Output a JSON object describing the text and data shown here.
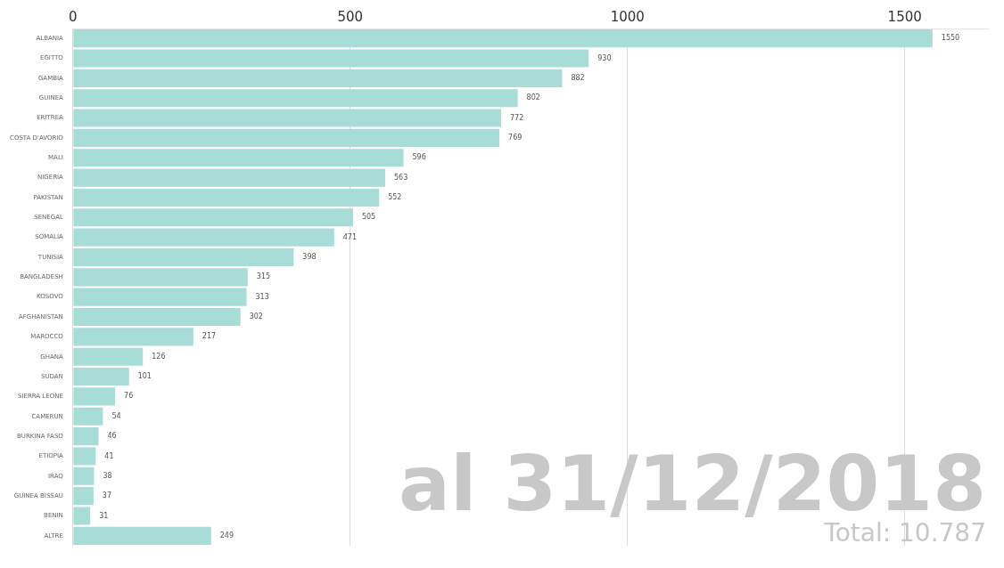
{
  "chart_data": {
    "type": "bar",
    "orientation": "horizontal",
    "categories": [
      "ALBANIA",
      "EGITTO",
      "GAMBIA",
      "GUINEA",
      "ERITREA",
      "COSTA D'AVORIO",
      "MALI",
      "NIGERIA",
      "PAKISTAN",
      "SENEGAL",
      "SOMALIA",
      "TUNISIA",
      "BANGLADESH",
      "KOSOVO",
      "AFGHANISTAN",
      "MAROCCO",
      "GHANA",
      "SUDAN",
      "SIERRA LEONE",
      "CAMERUN",
      "BURKINA FASO",
      "ETIOPIA",
      "IRAQ",
      "GUINEA BISSAU",
      "BENIN",
      "ALTRE"
    ],
    "values": [
      1550,
      930,
      882,
      802,
      772,
      769,
      596,
      563,
      552,
      505,
      471,
      398,
      315,
      313,
      302,
      217,
      126,
      101,
      76,
      54,
      46,
      41,
      38,
      37,
      31,
      249
    ],
    "color": "#a8dcd6",
    "xlim": [
      0,
      1650
    ],
    "xticks": [
      0,
      500,
      1000,
      1500
    ],
    "grid": "x",
    "data_labels": true,
    "annotations": [
      "al 31/12/2018",
      "Total: 10.787"
    ]
  }
}
